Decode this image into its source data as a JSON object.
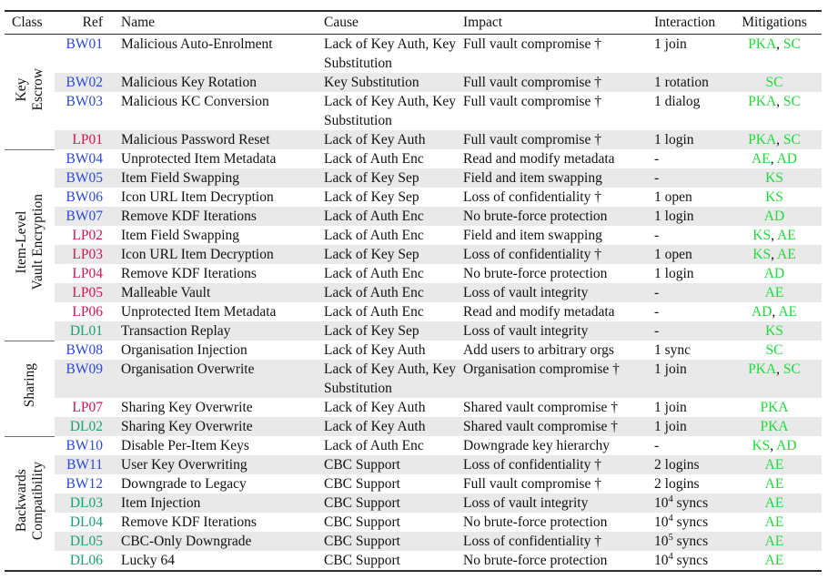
{
  "table": {
    "header": {
      "class_label": "Class",
      "ref_label": "Ref",
      "name_label": "Name",
      "cause_label": "Cause",
      "impact_label": "Impact",
      "interaction_label": "Interaction",
      "mitigations_label": "Mitigations"
    },
    "colors": {
      "ref_bw": "#2a49d6",
      "ref_lp": "#d01458",
      "ref_dl": "#16a077",
      "mitigation_green": "#1fd93a",
      "stripe_gray": "#e9e9e9",
      "rule_dark": "#2e2e2e",
      "text": "#111111"
    },
    "groups": [
      {
        "class_lines": [
          "Key",
          "Escrow"
        ],
        "rows": [
          {
            "ref": "BW01",
            "name": "Malicious Auto-Enrolment",
            "cause": "Lack of Key Auth, Key Substitution",
            "impact": "Full vault compromise †",
            "interaction": "1 join",
            "mitigations": [
              "PKA",
              "SC"
            ]
          },
          {
            "ref": "BW02",
            "name": "Malicious Key Rotation",
            "cause": "Key Substitution",
            "impact": "Full vault compromise †",
            "interaction": "1 rotation",
            "mitigations": [
              "SC"
            ]
          },
          {
            "ref": "BW03",
            "name": "Malicious KC Conversion",
            "cause": "Lack of Key Auth, Key Substitution",
            "impact": "Full vault compromise †",
            "interaction": "1 dialog",
            "mitigations": [
              "PKA",
              "SC"
            ]
          },
          {
            "ref": "LP01",
            "name": "Malicious Password Reset",
            "cause": "Lack of Key Auth",
            "impact": "Full vault compromise †",
            "interaction": "1 login",
            "mitigations": [
              "PKA",
              "SC"
            ]
          }
        ]
      },
      {
        "class_lines": [
          "Item-Level",
          "Vault Encryption"
        ],
        "rows": [
          {
            "ref": "BW04",
            "name": "Unprotected Item Metadata",
            "cause": "Lack of Auth Enc",
            "impact": "Read and modify metadata",
            "interaction": "-",
            "mitigations": [
              "AE",
              "AD"
            ]
          },
          {
            "ref": "BW05",
            "name": "Item Field Swapping",
            "cause": "Lack of Key Sep",
            "impact": "Field and item swapping",
            "interaction": "-",
            "mitigations": [
              "KS"
            ]
          },
          {
            "ref": "BW06",
            "name": "Icon URL Item Decryption",
            "cause": "Lack of Key Sep",
            "impact": "Loss of confidentiality †",
            "interaction": "1 open",
            "mitigations": [
              "KS"
            ]
          },
          {
            "ref": "BW07",
            "name": "Remove KDF Iterations",
            "cause": "Lack of Auth Enc",
            "impact": "No brute-force protection",
            "interaction": "1 login",
            "mitigations": [
              "AD"
            ]
          },
          {
            "ref": "LP02",
            "name": "Item Field Swapping",
            "cause": "Lack of Auth Enc",
            "impact": "Field and item swapping",
            "interaction": "-",
            "mitigations": [
              "KS",
              "AE"
            ]
          },
          {
            "ref": "LP03",
            "name": "Icon URL Item Decryption",
            "cause": "Lack of Key Sep",
            "impact": "Loss of confidentiality †",
            "interaction": "1 open",
            "mitigations": [
              "KS",
              "AE"
            ]
          },
          {
            "ref": "LP04",
            "name": "Remove KDF Iterations",
            "cause": "Lack of Auth Enc",
            "impact": "No brute-force protection",
            "interaction": "1 login",
            "mitigations": [
              "AD"
            ]
          },
          {
            "ref": "LP05",
            "name": "Malleable Vault",
            "cause": "Lack of Auth Enc",
            "impact": "Loss of vault integrity",
            "interaction": "-",
            "mitigations": [
              "AE"
            ]
          },
          {
            "ref": "LP06",
            "name": "Unprotected Item Metadata",
            "cause": "Lack of Auth Enc",
            "impact": "Read and modify metadata",
            "interaction": "-",
            "mitigations": [
              "AD",
              "AE"
            ]
          },
          {
            "ref": "DL01",
            "name": "Transaction Replay",
            "cause": "Lack of Key Sep",
            "impact": "Loss of vault integrity",
            "interaction": "-",
            "mitigations": [
              "KS"
            ]
          }
        ]
      },
      {
        "class_lines": [
          "Sharing"
        ],
        "rows": [
          {
            "ref": "BW08",
            "name": "Organisation Injection",
            "cause": "Lack of Key Auth",
            "impact": "Add users to arbitrary orgs",
            "interaction": "1 sync",
            "mitigations": [
              "SC"
            ]
          },
          {
            "ref": "BW09",
            "name": "Organisation Overwrite",
            "cause": "Lack of Key Auth, Key Substitution",
            "impact": "Organisation compromise †",
            "interaction": "1 join",
            "mitigations": [
              "PKA",
              "SC"
            ]
          },
          {
            "ref": "LP07",
            "name": "Sharing Key Overwrite",
            "cause": "Lack of Key Auth",
            "impact": "Shared vault compromise †",
            "interaction": "1 join",
            "mitigations": [
              "PKA"
            ]
          },
          {
            "ref": "DL02",
            "name": "Sharing Key Overwrite",
            "cause": "Lack of Key Auth",
            "impact": "Shared vault compromise †",
            "interaction": "1 join",
            "mitigations": [
              "PKA"
            ]
          }
        ]
      },
      {
        "class_lines": [
          "Backwards",
          "Compatibility"
        ],
        "rows": [
          {
            "ref": "BW10",
            "name": "Disable Per-Item Keys",
            "cause": "Lack of Auth Enc",
            "impact": "Downgrade key hierarchy",
            "interaction": "-",
            "mitigations": [
              "KS",
              "AD"
            ]
          },
          {
            "ref": "BW11",
            "name": "User Key Overwriting",
            "cause": "CBC Support",
            "impact": "Loss of confidentiality †",
            "interaction": "2 logins",
            "mitigations": [
              "AE"
            ]
          },
          {
            "ref": "BW12",
            "name": "Downgrade to Legacy",
            "cause": "CBC Support",
            "impact": "Full vault compromise †",
            "interaction": "2 logins",
            "mitigations": [
              "AE"
            ]
          },
          {
            "ref": "DL03",
            "name": "Item Injection",
            "cause": "CBC Support",
            "impact": "Loss of vault integrity",
            "interaction": "10⁴ syncs",
            "mitigations": [
              "AE"
            ]
          },
          {
            "ref": "DL04",
            "name": "Remove KDF Iterations",
            "cause": "CBC Support",
            "impact": "No brute-force protection",
            "interaction": "10⁴ syncs",
            "mitigations": [
              "AE"
            ]
          },
          {
            "ref": "DL05",
            "name": "CBC-Only Downgrade",
            "cause": "CBC Support",
            "impact": "Loss of confidentiality †",
            "interaction": "10⁵ syncs",
            "mitigations": [
              "AE"
            ]
          },
          {
            "ref": "DL06",
            "name": "Lucky 64",
            "cause": "CBC Support",
            "impact": "No brute-force protection",
            "interaction": "10⁴ syncs",
            "mitigations": [
              "AE"
            ]
          }
        ]
      }
    ]
  }
}
